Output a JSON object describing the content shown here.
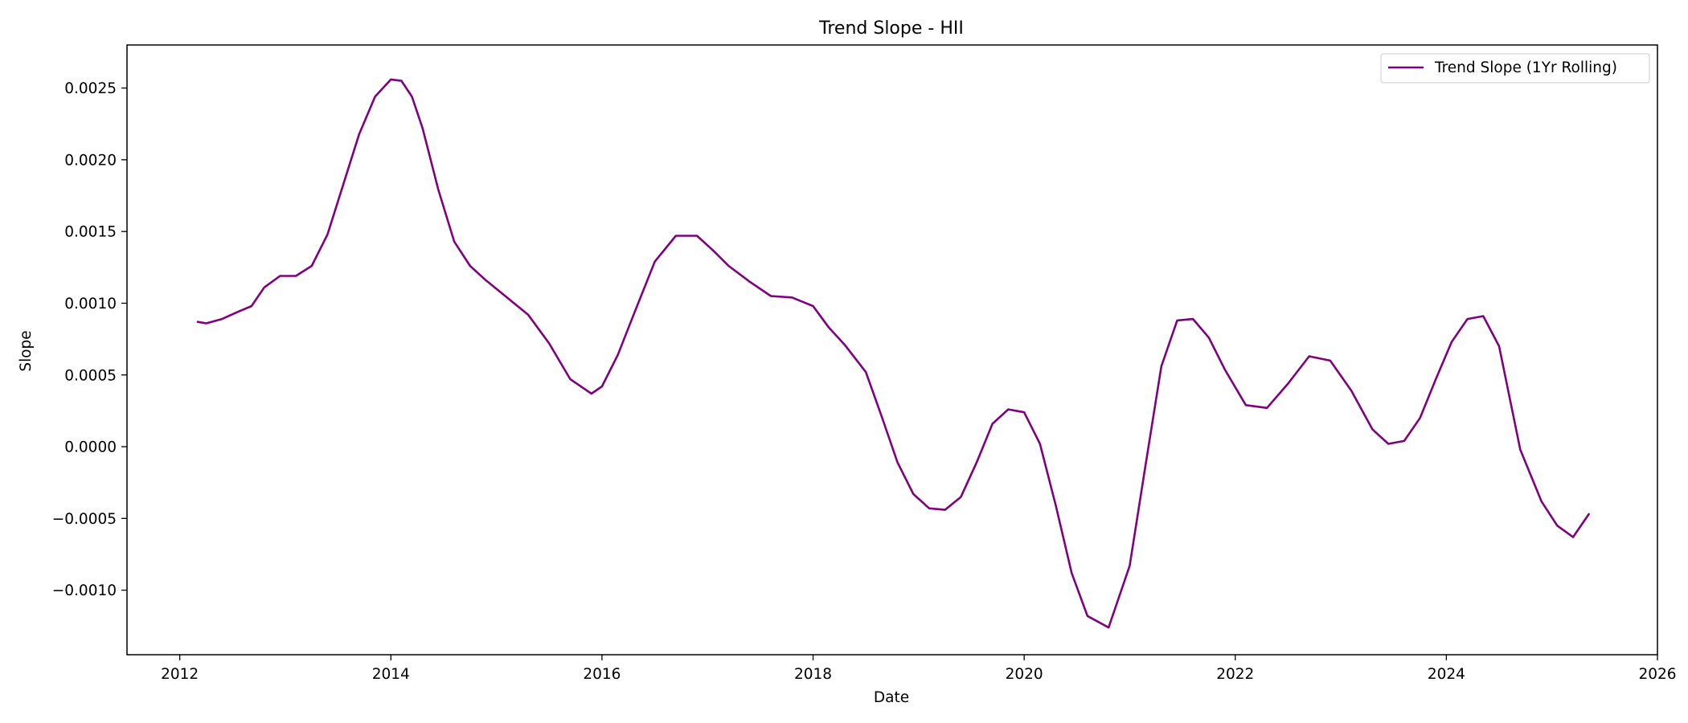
{
  "chart_data": {
    "type": "line",
    "title": "Trend Slope - HII",
    "xlabel": "Date",
    "ylabel": "Slope",
    "xlim": [
      2011.5,
      2026.0
    ],
    "ylim": [
      -0.00145,
      0.0028
    ],
    "x_ticks": [
      2012,
      2014,
      2016,
      2018,
      2020,
      2022,
      2024,
      2026
    ],
    "x_tick_labels": [
      "2012",
      "2014",
      "2016",
      "2018",
      "2020",
      "2022",
      "2024",
      "2026"
    ],
    "y_ticks": [
      -0.001,
      -0.0005,
      0.0,
      0.0005,
      0.001,
      0.0015,
      0.002,
      0.0025
    ],
    "y_tick_labels": [
      "−0.0010",
      "−0.0005",
      "0.0000",
      "0.0005",
      "0.0010",
      "0.0015",
      "0.0020",
      "0.0025"
    ],
    "grid": false,
    "legend": {
      "position": "top-right"
    },
    "series": [
      {
        "name": "Trend Slope (1Yr Rolling)",
        "color": "#800080",
        "x": [
          2012.17,
          2012.25,
          2012.4,
          2012.55,
          2012.68,
          2012.8,
          2012.95,
          2013.1,
          2013.25,
          2013.4,
          2013.55,
          2013.7,
          2013.85,
          2014.0,
          2014.1,
          2014.2,
          2014.3,
          2014.45,
          2014.6,
          2014.75,
          2014.9,
          2015.1,
          2015.3,
          2015.5,
          2015.7,
          2015.9,
          2016.0,
          2016.15,
          2016.3,
          2016.5,
          2016.7,
          2016.9,
          2017.05,
          2017.2,
          2017.4,
          2017.6,
          2017.8,
          2018.0,
          2018.15,
          2018.3,
          2018.5,
          2018.65,
          2018.8,
          2018.95,
          2019.1,
          2019.25,
          2019.4,
          2019.55,
          2019.7,
          2019.85,
          2020.0,
          2020.15,
          2020.3,
          2020.45,
          2020.6,
          2020.8,
          2021.0,
          2021.15,
          2021.3,
          2021.45,
          2021.6,
          2021.75,
          2021.9,
          2022.1,
          2022.3,
          2022.5,
          2022.7,
          2022.9,
          2023.1,
          2023.3,
          2023.45,
          2023.6,
          2023.75,
          2023.9,
          2024.05,
          2024.2,
          2024.35,
          2024.5,
          2024.7,
          2024.9,
          2025.05,
          2025.2,
          2025.35
        ],
        "y": [
          0.00087,
          0.00086,
          0.00089,
          0.00094,
          0.00098,
          0.00111,
          0.00119,
          0.00119,
          0.00126,
          0.00148,
          0.00183,
          0.00218,
          0.00244,
          0.00256,
          0.00255,
          0.00244,
          0.00222,
          0.00179,
          0.00143,
          0.00126,
          0.00116,
          0.00104,
          0.00092,
          0.00072,
          0.00047,
          0.00037,
          0.00042,
          0.00064,
          0.00092,
          0.00129,
          0.00147,
          0.00147,
          0.00137,
          0.00126,
          0.00115,
          0.00105,
          0.00104,
          0.00098,
          0.00083,
          0.00071,
          0.00052,
          0.00021,
          -0.00011,
          -0.00033,
          -0.00043,
          -0.00044,
          -0.00035,
          -0.00011,
          0.00016,
          0.00026,
          0.00024,
          2e-05,
          -0.00041,
          -0.00088,
          -0.00118,
          -0.00126,
          -0.00083,
          -0.00013,
          0.00056,
          0.00088,
          0.00089,
          0.00076,
          0.00054,
          0.00029,
          0.00027,
          0.00044,
          0.00063,
          0.0006,
          0.00039,
          0.00012,
          2e-05,
          4e-05,
          0.0002,
          0.00047,
          0.00073,
          0.00089,
          0.00091,
          0.0007,
          -2e-05,
          -0.00038,
          -0.00055,
          -0.00063,
          -0.00047
        ]
      }
    ]
  }
}
